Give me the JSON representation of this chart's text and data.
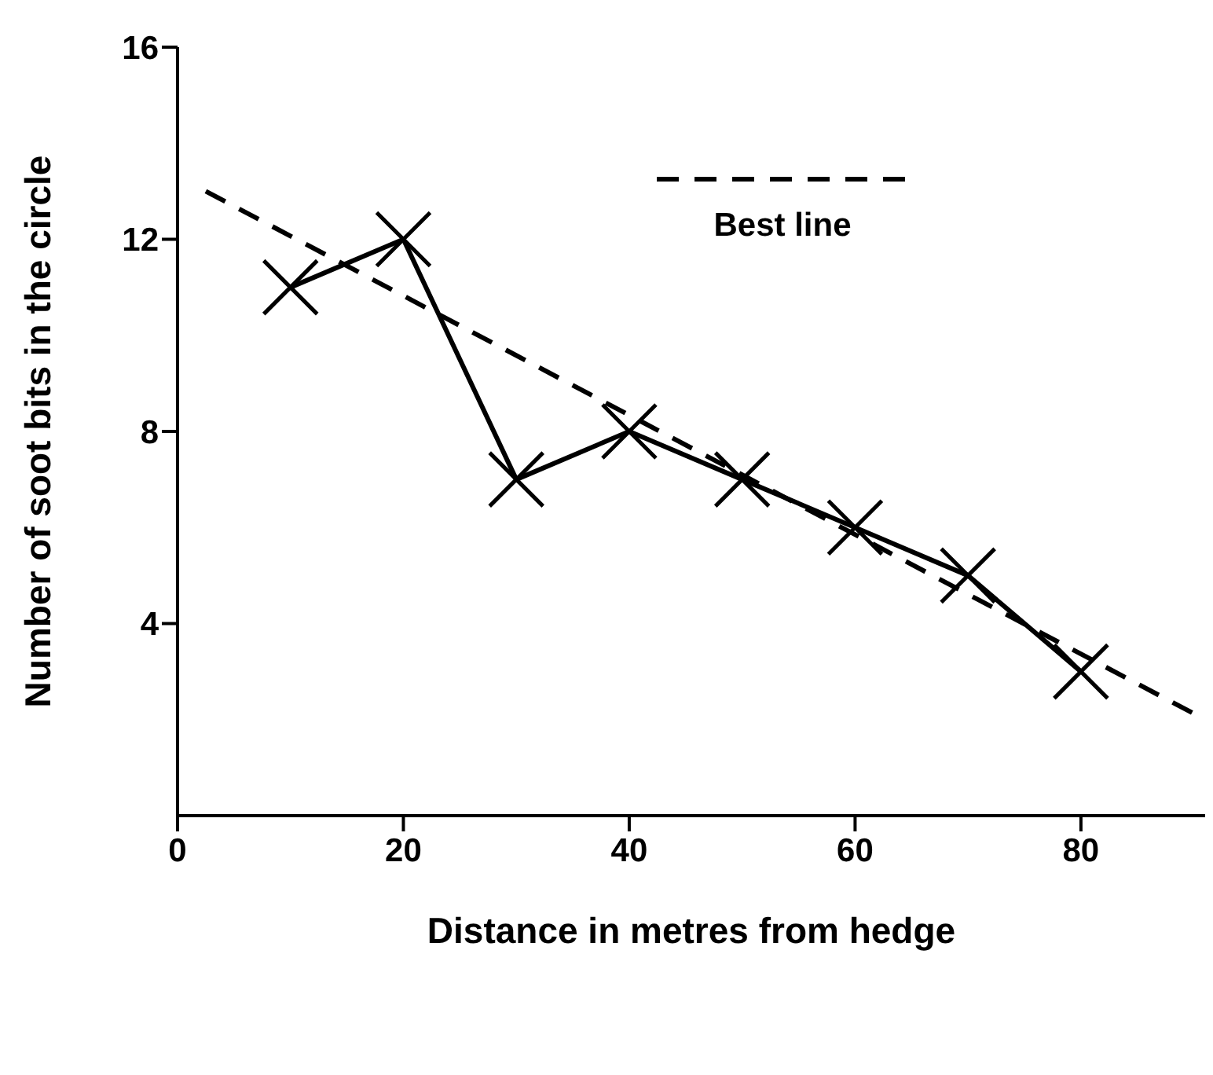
{
  "chart_data": {
    "type": "line",
    "xlabel": "Distance in metres from hedge",
    "ylabel": "Number of soot bits in the circle",
    "x": [
      10,
      20,
      30,
      40,
      50,
      60,
      70,
      80
    ],
    "series": [
      {
        "color": "#000000",
        "values": [
          11,
          12,
          7,
          8,
          7,
          6,
          5,
          3
        ],
        "marker": "cross",
        "line_style": "solid"
      },
      {
        "name": "Best line",
        "type": "line",
        "color": "#000000",
        "x": [
          2.5,
          91
        ],
        "values": [
          13.0,
          2.0
        ],
        "marker": "none",
        "line_style": "dashed"
      }
    ],
    "xlim": [
      0,
      91
    ],
    "xticks": [
      0,
      20,
      40,
      60,
      80
    ],
    "ylim": [
      0,
      16
    ],
    "yticks": [
      4,
      8,
      12,
      16
    ],
    "legend": "top right"
  }
}
